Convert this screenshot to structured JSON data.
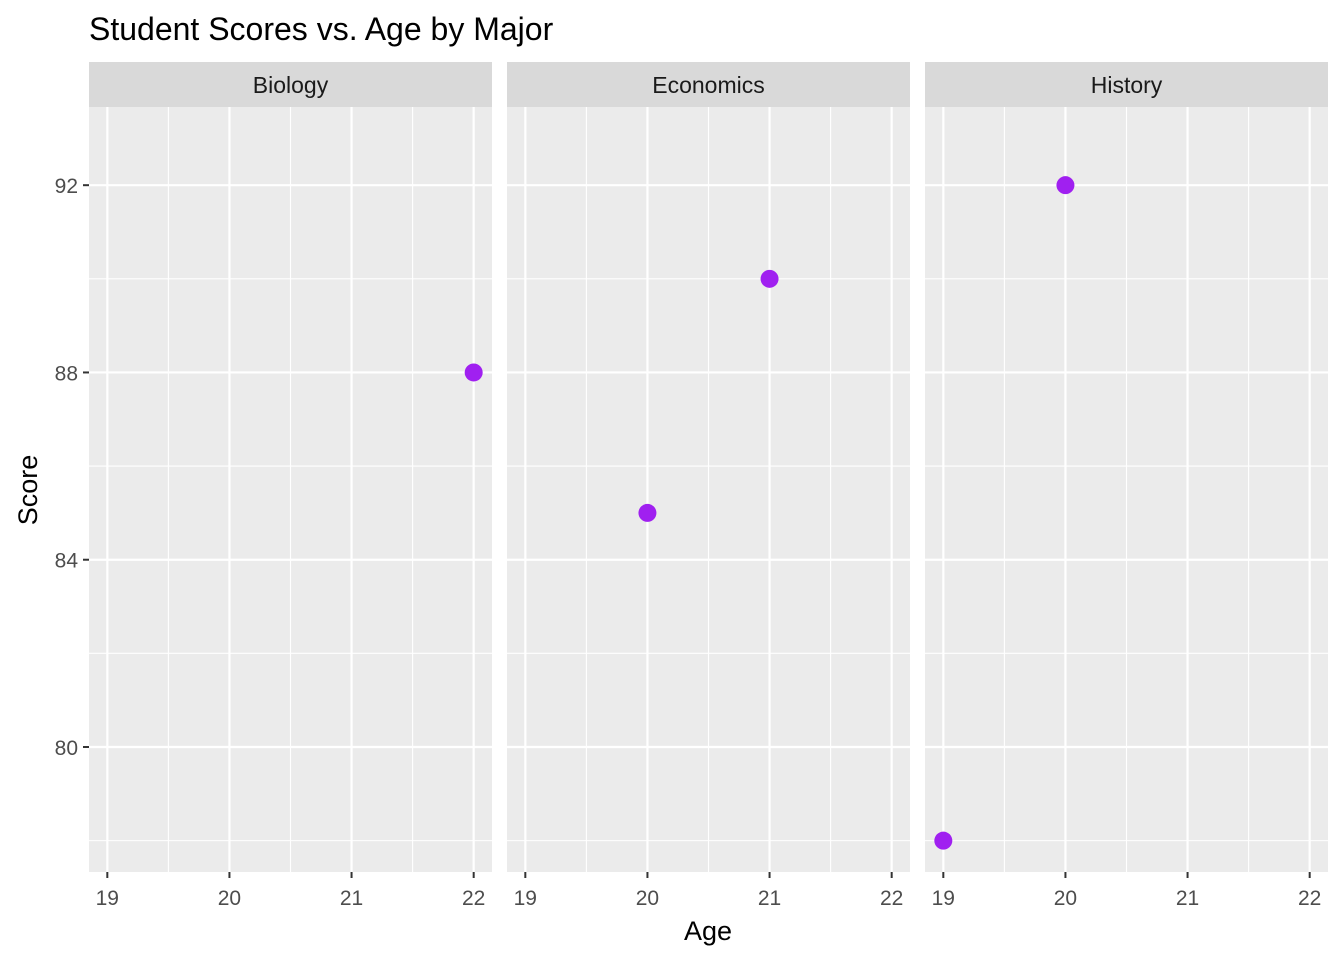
{
  "chart_data": {
    "type": "scatter",
    "title": "Student Scores vs. Age by Major",
    "xlabel": "Age",
    "ylabel": "Score",
    "xlim": [
      18.85,
      22.15
    ],
    "ylim": [
      77.33,
      93.67
    ],
    "x_ticks": [
      19,
      20,
      21,
      22
    ],
    "y_ticks": [
      80,
      84,
      88,
      92
    ],
    "x_tick_labels": [
      "19",
      "20",
      "21",
      "22"
    ],
    "y_tick_labels": [
      "80",
      "84",
      "88",
      "92"
    ],
    "grid": true,
    "point_color": "#A020F0",
    "panel_background": "#EBEBEB",
    "strip_background": "#D9D9D9",
    "panels": [
      {
        "name": "Biology",
        "points": [
          {
            "x": 22,
            "y": 88
          }
        ]
      },
      {
        "name": "Economics",
        "points": [
          {
            "x": 20,
            "y": 85
          },
          {
            "x": 21,
            "y": 90
          }
        ]
      },
      {
        "name": "History",
        "points": [
          {
            "x": 19,
            "y": 78
          },
          {
            "x": 20,
            "y": 92
          }
        ]
      }
    ]
  }
}
